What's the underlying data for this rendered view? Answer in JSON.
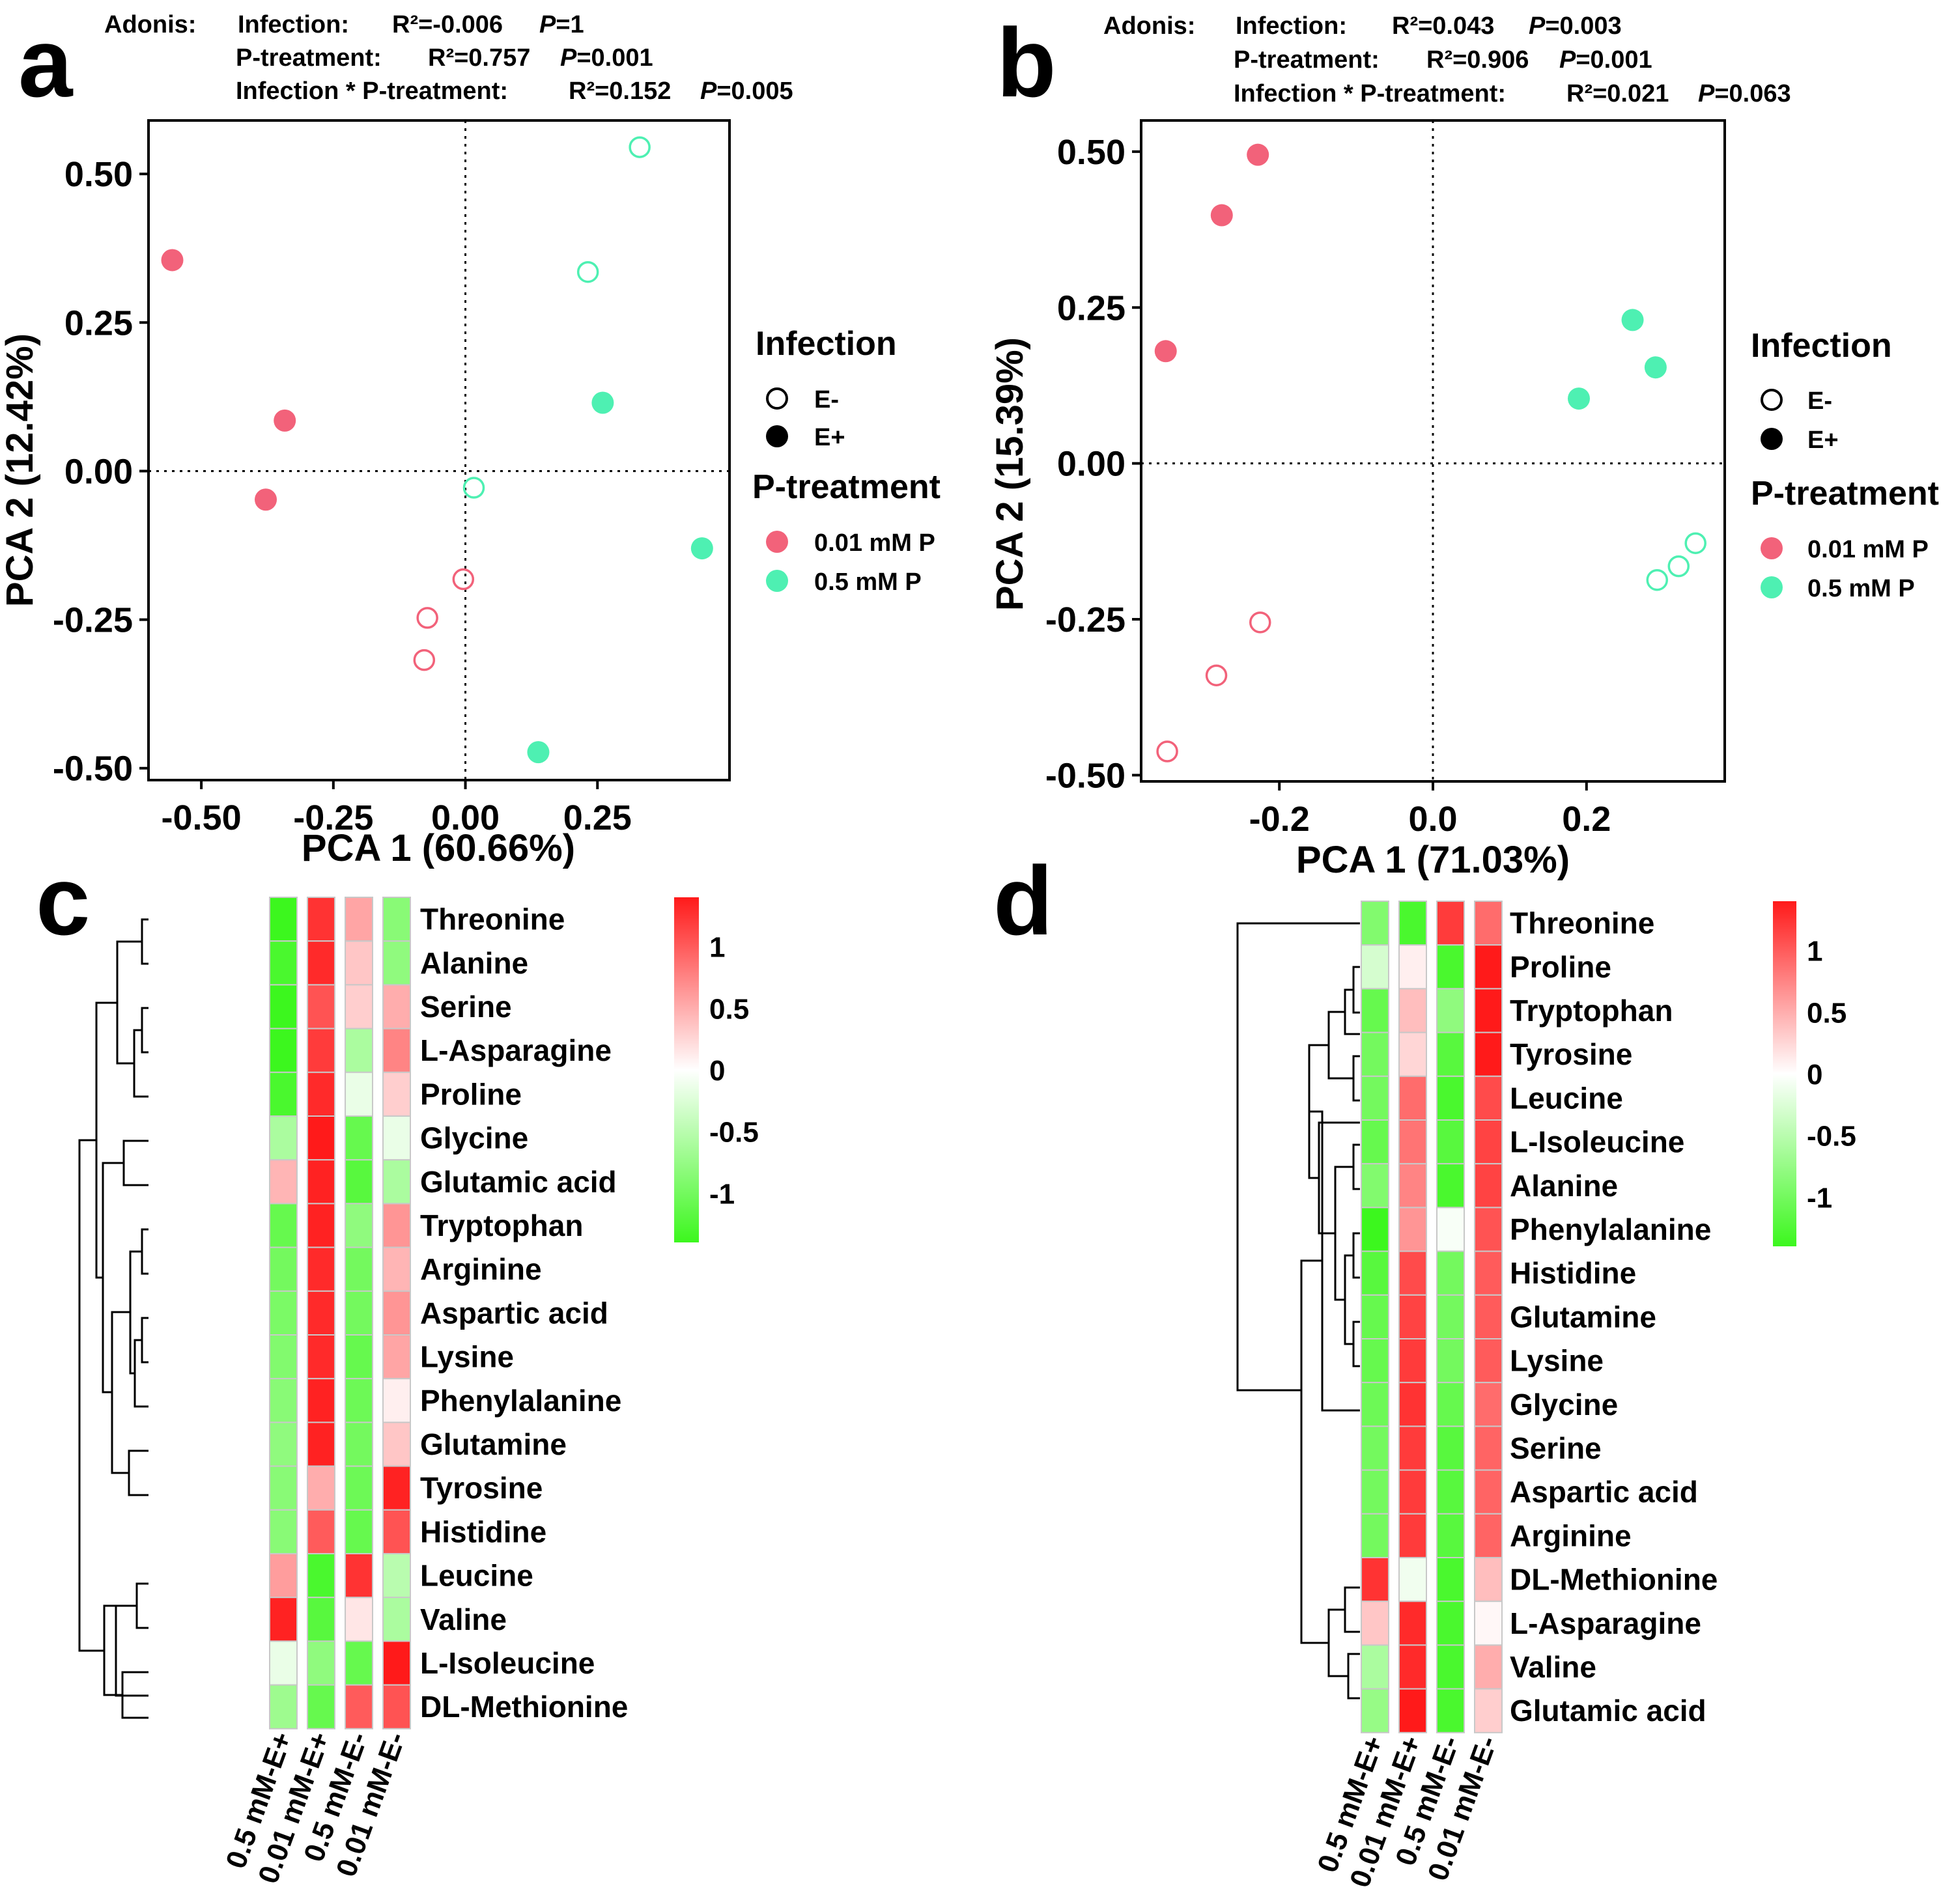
{
  "colors": {
    "pink": "#F2627A",
    "teal": "#4EF0B2",
    "heat_low": "#3CF71E",
    "heat_mid": "#FFFFFF",
    "heat_high": "#FF1A1A"
  },
  "chart_data": [
    {
      "panel": "a",
      "type": "scatter",
      "title": "",
      "xlabel": "PCA 1 (60.66%)",
      "ylabel": "PCA 2 (12.42%)",
      "xlim": [
        -0.6,
        0.5
      ],
      "ylim": [
        -0.52,
        0.59
      ],
      "xticks": [
        -0.5,
        -0.25,
        0,
        0.25
      ],
      "xtick_labels": [
        "-0.50",
        "-0.25",
        "0.00",
        "0.25"
      ],
      "yticks": [
        0.5,
        0.25,
        0,
        -0.25,
        -0.5
      ],
      "ytick_labels": [
        "0.50",
        "0.25",
        "0.00",
        "-0.25",
        "-0.50"
      ],
      "adonis": {
        "label": "Adonis:",
        "rows": [
          {
            "term": "Infection:",
            "r2": "R²=-0.006",
            "p_label": "P",
            "p_value": "=1"
          },
          {
            "term": "P-treatment:",
            "r2": "R²=0.757",
            "p_label": "P",
            "p_value": "=0.001"
          },
          {
            "term": "Infection * P-treatment:",
            "r2": "R²=0.152",
            "p_label": "P",
            "p_value": "=0.005"
          }
        ]
      },
      "legend": {
        "infection_title": "Infection",
        "infection_items": [
          "E-",
          "E+"
        ],
        "treatment_title": "P-treatment",
        "treatment_items": [
          "0.01 mM P",
          "0.5 mM P"
        ]
      },
      "points": [
        {
          "x": -0.555,
          "y": 0.355,
          "treatment": "0.01 mM P",
          "infection": "E+"
        },
        {
          "x": -0.342,
          "y": 0.085,
          "treatment": "0.01 mM P",
          "infection": "E+"
        },
        {
          "x": -0.378,
          "y": -0.048,
          "treatment": "0.01 mM P",
          "infection": "E+"
        },
        {
          "x": -0.004,
          "y": -0.182,
          "treatment": "0.01 mM P",
          "infection": "E-"
        },
        {
          "x": -0.072,
          "y": -0.247,
          "treatment": "0.01 mM P",
          "infection": "E-"
        },
        {
          "x": -0.078,
          "y": -0.318,
          "treatment": "0.01 mM P",
          "infection": "E-"
        },
        {
          "x": 0.33,
          "y": 0.545,
          "treatment": "0.5 mM P",
          "infection": "E-"
        },
        {
          "x": 0.232,
          "y": 0.335,
          "treatment": "0.5 mM P",
          "infection": "E-"
        },
        {
          "x": 0.016,
          "y": -0.028,
          "treatment": "0.5 mM P",
          "infection": "E-"
        },
        {
          "x": 0.26,
          "y": 0.115,
          "treatment": "0.5 mM P",
          "infection": "E+"
        },
        {
          "x": 0.448,
          "y": -0.13,
          "treatment": "0.5 mM P",
          "infection": "E+"
        },
        {
          "x": 0.138,
          "y": -0.473,
          "treatment": "0.5 mM P",
          "infection": "E+"
        }
      ]
    },
    {
      "panel": "b",
      "type": "scatter",
      "title": "",
      "xlabel": "PCA 1 (71.03%)",
      "ylabel": "PCA 2 (15.39%)",
      "xlim": [
        -0.38,
        0.38
      ],
      "ylim": [
        -0.51,
        0.55
      ],
      "xticks": [
        -0.2,
        0,
        0.2
      ],
      "xtick_labels": [
        "-0.2",
        "0.0",
        "0.2"
      ],
      "yticks": [
        0.5,
        0.25,
        0,
        -0.25,
        -0.5
      ],
      "ytick_labels": [
        "0.50",
        "0.25",
        "0.00",
        "-0.25",
        "-0.50"
      ],
      "adonis": {
        "label": "Adonis:",
        "rows": [
          {
            "term": "Infection:",
            "r2": "R²=0.043",
            "p_label": "P",
            "p_value": "=0.003"
          },
          {
            "term": "P-treatment:",
            "r2": "R²=0.906",
            "p_label": "P",
            "p_value": "=0.001"
          },
          {
            "term": "Infection * P-treatment:",
            "r2": "R²=0.021",
            "p_label": "P",
            "p_value": "=0.063"
          }
        ]
      },
      "legend": {
        "infection_title": "Infection",
        "infection_items": [
          "E-",
          "E+"
        ],
        "treatment_title": "P-treatment",
        "treatment_items": [
          "0.01 mM P",
          "0.5 mM P"
        ]
      },
      "points": [
        {
          "x": -0.228,
          "y": 0.495,
          "treatment": "0.01 mM P",
          "infection": "E+"
        },
        {
          "x": -0.275,
          "y": 0.398,
          "treatment": "0.01 mM P",
          "infection": "E+"
        },
        {
          "x": -0.348,
          "y": 0.18,
          "treatment": "0.01 mM P",
          "infection": "E+"
        },
        {
          "x": -0.225,
          "y": -0.255,
          "treatment": "0.01 mM P",
          "infection": "E-"
        },
        {
          "x": -0.282,
          "y": -0.34,
          "treatment": "0.01 mM P",
          "infection": "E-"
        },
        {
          "x": -0.346,
          "y": -0.462,
          "treatment": "0.01 mM P",
          "infection": "E-"
        },
        {
          "x": 0.26,
          "y": 0.23,
          "treatment": "0.5 mM P",
          "infection": "E+"
        },
        {
          "x": 0.29,
          "y": 0.154,
          "treatment": "0.5 mM P",
          "infection": "E+"
        },
        {
          "x": 0.19,
          "y": 0.104,
          "treatment": "0.5 mM P",
          "infection": "E+"
        },
        {
          "x": 0.342,
          "y": -0.128,
          "treatment": "0.5 mM P",
          "infection": "E-"
        },
        {
          "x": 0.32,
          "y": -0.165,
          "treatment": "0.5 mM P",
          "infection": "E-"
        },
        {
          "x": 0.292,
          "y": -0.187,
          "treatment": "0.5 mM P",
          "infection": "E-"
        }
      ]
    },
    {
      "panel": "c",
      "type": "heatmap",
      "columns": [
        "0.5 mM-E+",
        "0.01 mM-E+",
        "0.5 mM-E-",
        "0.01 mM-E-"
      ],
      "rows": [
        "Threonine",
        "Alanine",
        "Serine",
        "L-Asparagine",
        "Proline",
        "Glycine",
        "Glutamic acid",
        "Tryptophan",
        "Arginine",
        "Aspartic acid",
        "Lysine",
        "Phenylalanine",
        "Glutamine",
        "Tyrosine",
        "Histidine",
        "Leucine",
        "Valine",
        "L-Isoleucine",
        "DL-Methionine"
      ],
      "values": [
        [
          -1.4,
          1.25,
          0.55,
          -0.85
        ],
        [
          -1.3,
          1.3,
          0.35,
          -0.8
        ],
        [
          -1.4,
          1.05,
          0.3,
          0.5
        ],
        [
          -1.4,
          1.2,
          -0.6,
          0.75
        ],
        [
          -1.3,
          1.3,
          -0.15,
          0.3
        ],
        [
          -0.6,
          1.4,
          -1.1,
          -0.15
        ],
        [
          0.45,
          1.35,
          -1.2,
          -0.6
        ],
        [
          -1.1,
          1.35,
          -0.8,
          0.65
        ],
        [
          -1.0,
          1.3,
          -1.0,
          0.45
        ],
        [
          -0.95,
          1.3,
          -1.0,
          0.65
        ],
        [
          -0.9,
          1.3,
          -1.1,
          0.55
        ],
        [
          -0.85,
          1.35,
          -1.05,
          0.1
        ],
        [
          -0.8,
          1.35,
          -1.0,
          0.35
        ],
        [
          -0.85,
          0.5,
          -1.05,
          1.35
        ],
        [
          -0.85,
          1.0,
          -1.1,
          1.05
        ],
        [
          0.6,
          -1.3,
          1.25,
          -0.5
        ],
        [
          1.35,
          -1.2,
          0.15,
          -0.6
        ],
        [
          -0.15,
          -0.8,
          -1.1,
          1.4
        ],
        [
          -0.7,
          -1.1,
          1.0,
          1.05
        ]
      ],
      "colorbar": {
        "range": [
          -1.4,
          1.4
        ],
        "ticks": [
          1,
          0.5,
          0,
          -0.5,
          -1
        ],
        "tick_labels": [
          "1",
          "0.5",
          "0",
          "-0.5",
          "-1"
        ]
      }
    },
    {
      "panel": "d",
      "type": "heatmap",
      "columns": [
        "0.5 mM-E+",
        "0.01 mM-E+",
        "0.5 mM-E-",
        "0.01 mM-E-"
      ],
      "rows": [
        "Threonine",
        "Proline",
        "Tryptophan",
        "Tyrosine",
        "Leucine",
        "L-Isoleucine",
        "Alanine",
        "Phenylalanine",
        "Histidine",
        "Glutamine",
        "Lysine",
        "Glycine",
        "Serine",
        "Aspartic acid",
        "Arginine",
        "DL-Methionine",
        "L-Asparagine",
        "Valine",
        "Glutamic acid"
      ],
      "values": [
        [
          -0.9,
          -1.3,
          1.2,
          0.9
        ],
        [
          -0.3,
          0.1,
          -1.3,
          1.4
        ],
        [
          -1.1,
          0.4,
          -0.8,
          1.4
        ],
        [
          -1.0,
          0.25,
          -1.2,
          1.45
        ],
        [
          -1.0,
          0.9,
          -1.3,
          1.1
        ],
        [
          -1.1,
          0.85,
          -1.2,
          1.15
        ],
        [
          -0.9,
          0.75,
          -1.3,
          1.15
        ],
        [
          -1.4,
          0.65,
          -0.05,
          1.05
        ],
        [
          -1.2,
          1.1,
          -1.0,
          1.0
        ],
        [
          -1.1,
          1.15,
          -1.0,
          1.0
        ],
        [
          -1.1,
          1.2,
          -1.0,
          1.0
        ],
        [
          -1.05,
          1.25,
          -1.1,
          0.9
        ],
        [
          -1.0,
          1.2,
          -1.2,
          0.95
        ],
        [
          -1.0,
          1.2,
          -1.2,
          0.95
        ],
        [
          -1.0,
          1.2,
          -1.2,
          0.95
        ],
        [
          1.25,
          -0.1,
          -1.3,
          0.4
        ],
        [
          0.35,
          1.3,
          -1.3,
          0.05
        ],
        [
          -0.6,
          1.3,
          -1.3,
          0.5
        ],
        [
          -0.75,
          1.4,
          -1.3,
          0.3
        ]
      ],
      "colorbar": {
        "range": [
          -1.4,
          1.4
        ],
        "ticks": [
          1,
          0.5,
          0,
          -0.5,
          -1
        ],
        "tick_labels": [
          "1",
          "0.5",
          "0",
          "-0.5",
          "-1"
        ]
      }
    }
  ]
}
